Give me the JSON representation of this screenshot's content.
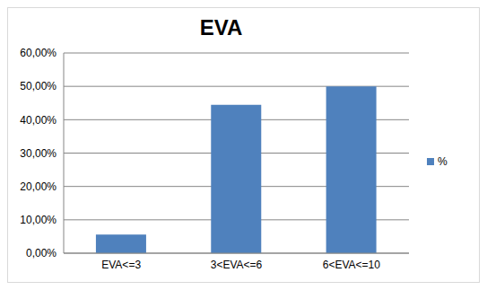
{
  "chart_data": {
    "type": "bar",
    "title": "EVA",
    "categories": [
      "EVA<=3",
      "3<EVA<=6",
      "6<EVA<=10"
    ],
    "series": [
      {
        "name": "%",
        "color": "#4f81bd",
        "values": [
          5.56,
          44.44,
          50.0
        ]
      }
    ],
    "ylim": [
      0,
      60
    ],
    "yticks": [
      {
        "value": 0,
        "label": "0,00%"
      },
      {
        "value": 10,
        "label": "10,00%"
      },
      {
        "value": 20,
        "label": "20,00%"
      },
      {
        "value": 30,
        "label": "30,00%"
      },
      {
        "value": 40,
        "label": "40,00%"
      },
      {
        "value": 50,
        "label": "50,00%"
      },
      {
        "value": 60,
        "label": "60,00%"
      }
    ],
    "grid": true,
    "legend": "right"
  }
}
